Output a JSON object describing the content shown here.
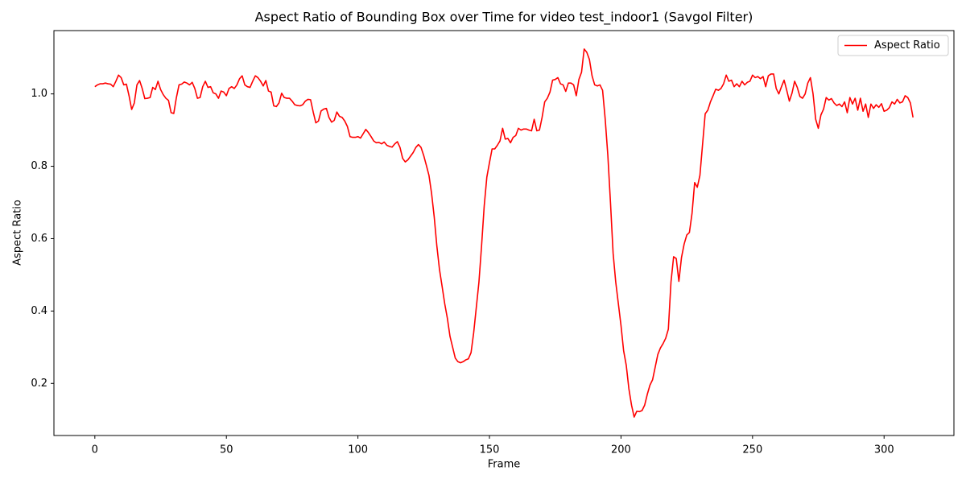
{
  "chart_data": {
    "type": "line",
    "title": "Aspect Ratio of Bounding Box over Time for video test_indoor1 (Savgol Filter)",
    "x_label": "Frame",
    "y_label": "Aspect Ratio",
    "xlim": [
      -15.55,
      326.55
    ],
    "ylim": [
      0.056,
      1.175
    ],
    "xticks": [
      0,
      50,
      100,
      150,
      200,
      250,
      300
    ],
    "yticks": [
      0.2,
      0.4,
      0.6,
      0.8,
      {
        "value": 1,
        "label": "1.0"
      }
    ],
    "grid": false,
    "legend": "upper right",
    "x": [
      0,
      1,
      2,
      3,
      4,
      5,
      6,
      7,
      8,
      9,
      10,
      11,
      12,
      13,
      14,
      15,
      16,
      17,
      18,
      19,
      20,
      21,
      22,
      23,
      24,
      25,
      26,
      27,
      28,
      29,
      30,
      31,
      32,
      33,
      34,
      35,
      36,
      37,
      38,
      39,
      40,
      41,
      42,
      43,
      44,
      45,
      46,
      47,
      48,
      49,
      50,
      51,
      52,
      53,
      54,
      55,
      56,
      57,
      58,
      59,
      60,
      61,
      62,
      63,
      64,
      65,
      66,
      67,
      68,
      69,
      70,
      71,
      72,
      73,
      74,
      75,
      76,
      77,
      78,
      79,
      80,
      81,
      82,
      83,
      84,
      85,
      86,
      87,
      88,
      89,
      90,
      91,
      92,
      93,
      94,
      95,
      96,
      97,
      98,
      99,
      100,
      101,
      102,
      103,
      104,
      105,
      106,
      107,
      108,
      109,
      110,
      111,
      112,
      113,
      114,
      115,
      116,
      117,
      118,
      119,
      120,
      121,
      122,
      123,
      124,
      125,
      126,
      127,
      128,
      129,
      130,
      131,
      132,
      133,
      134,
      135,
      136,
      137,
      138,
      139,
      140,
      141,
      142,
      143,
      144,
      145,
      146,
      147,
      148,
      149,
      150,
      151,
      152,
      153,
      154,
      155,
      156,
      157,
      158,
      159,
      160,
      161,
      162,
      163,
      164,
      165,
      166,
      167,
      168,
      169,
      170,
      171,
      172,
      173,
      174,
      175,
      176,
      177,
      178,
      179,
      180,
      181,
      182,
      183,
      184,
      185,
      186,
      187,
      188,
      189,
      190,
      191,
      192,
      193,
      194,
      195,
      196,
      197,
      198,
      199,
      200,
      201,
      202,
      203,
      204,
      205,
      206,
      207,
      208,
      209,
      210,
      211,
      212,
      213,
      214,
      215,
      216,
      217,
      218,
      219,
      220,
      221,
      222,
      223,
      224,
      225,
      226,
      227,
      228,
      229,
      230,
      231,
      232,
      233,
      234,
      235,
      236,
      237,
      238,
      239,
      240,
      241,
      242,
      243,
      244,
      245,
      246,
      247,
      248,
      249,
      250,
      251,
      252,
      253,
      254,
      255,
      256,
      257,
      258,
      259,
      260,
      261,
      262,
      263,
      264,
      265,
      266,
      267,
      268,
      269,
      270,
      271,
      272,
      273,
      274,
      275,
      276,
      277,
      278,
      279,
      280,
      281,
      282,
      283,
      284,
      285,
      286,
      287,
      288,
      289,
      290,
      291,
      292,
      293,
      294,
      295,
      296,
      297,
      298,
      299,
      300,
      301,
      302,
      303,
      304,
      305,
      306,
      307,
      308,
      309,
      310,
      311
    ],
    "series": [
      {
        "name": "Aspect Ratio",
        "color": "#ff0000",
        "values": [
          1.02,
          1.025,
          1.028,
          1.028,
          1.03,
          1.028,
          1.027,
          1.02,
          1.035,
          1.052,
          1.045,
          1.025,
          1.027,
          0.995,
          0.957,
          0.975,
          1.025,
          1.037,
          1.015,
          0.987,
          0.988,
          0.99,
          1.018,
          1.012,
          1.035,
          1.012,
          0.998,
          0.988,
          0.982,
          0.948,
          0.946,
          0.99,
          1.025,
          1.027,
          1.033,
          1.03,
          1.025,
          1.032,
          1.015,
          0.988,
          0.99,
          1.02,
          1.035,
          1.018,
          1.02,
          1.003,
          1.0,
          0.988,
          1.008,
          1.005,
          0.995,
          1.015,
          1.02,
          1.015,
          1.025,
          1.042,
          1.05,
          1.025,
          1.02,
          1.018,
          1.035,
          1.05,
          1.045,
          1.035,
          1.022,
          1.037,
          1.008,
          1.005,
          0.967,
          0.965,
          0.975,
          1.002,
          0.99,
          0.988,
          0.988,
          0.98,
          0.97,
          0.968,
          0.967,
          0.97,
          0.98,
          0.985,
          0.984,
          0.95,
          0.92,
          0.925,
          0.953,
          0.958,
          0.96,
          0.935,
          0.922,
          0.927,
          0.95,
          0.938,
          0.935,
          0.925,
          0.91,
          0.882,
          0.88,
          0.88,
          0.882,
          0.878,
          0.89,
          0.902,
          0.893,
          0.882,
          0.87,
          0.865,
          0.866,
          0.862,
          0.867,
          0.858,
          0.855,
          0.853,
          0.862,
          0.868,
          0.852,
          0.822,
          0.812,
          0.818,
          0.828,
          0.838,
          0.852,
          0.86,
          0.852,
          0.83,
          0.803,
          0.775,
          0.725,
          0.66,
          0.58,
          0.515,
          0.468,
          0.42,
          0.38,
          0.33,
          0.3,
          0.27,
          0.26,
          0.257,
          0.26,
          0.265,
          0.268,
          0.285,
          0.34,
          0.41,
          0.48,
          0.58,
          0.69,
          0.77,
          0.81,
          0.848,
          0.848,
          0.858,
          0.87,
          0.905,
          0.875,
          0.877,
          0.865,
          0.88,
          0.885,
          0.905,
          0.9,
          0.903,
          0.903,
          0.9,
          0.898,
          0.93,
          0.898,
          0.9,
          0.935,
          0.978,
          0.988,
          1.005,
          1.038,
          1.04,
          1.045,
          1.028,
          1.025,
          1.007,
          1.03,
          1.03,
          1.025,
          0.995,
          1.04,
          1.06,
          1.124,
          1.115,
          1.095,
          1.05,
          1.025,
          1.022,
          1.025,
          1.01,
          0.93,
          0.83,
          0.7,
          0.56,
          0.48,
          0.42,
          0.36,
          0.29,
          0.25,
          0.185,
          0.14,
          0.107,
          0.123,
          0.122,
          0.125,
          0.14,
          0.17,
          0.195,
          0.21,
          0.245,
          0.28,
          0.298,
          0.31,
          0.325,
          0.35,
          0.48,
          0.55,
          0.545,
          0.482,
          0.548,
          0.585,
          0.61,
          0.617,
          0.67,
          0.755,
          0.742,
          0.775,
          0.86,
          0.945,
          0.955,
          0.978,
          0.995,
          1.013,
          1.01,
          1.015,
          1.028,
          1.052,
          1.035,
          1.038,
          1.02,
          1.028,
          1.02,
          1.035,
          1.025,
          1.032,
          1.035,
          1.052,
          1.045,
          1.048,
          1.042,
          1.048,
          1.02,
          1.05,
          1.055,
          1.055,
          1.015,
          1.0,
          1.02,
          1.038,
          1.01,
          0.98,
          1.002,
          1.035,
          1.018,
          0.993,
          0.988,
          1.0,
          1.03,
          1.045,
          1.0,
          0.93,
          0.905,
          0.942,
          0.958,
          0.99,
          0.983,
          0.987,
          0.975,
          0.968,
          0.972,
          0.965,
          0.978,
          0.948,
          0.99,
          0.972,
          0.988,
          0.955,
          0.988,
          0.952,
          0.972,
          0.935,
          0.972,
          0.96,
          0.97,
          0.963,
          0.973,
          0.952,
          0.955,
          0.962,
          0.978,
          0.972,
          0.985,
          0.975,
          0.978,
          0.995,
          0.99,
          0.975,
          0.935
        ]
      }
    ]
  }
}
